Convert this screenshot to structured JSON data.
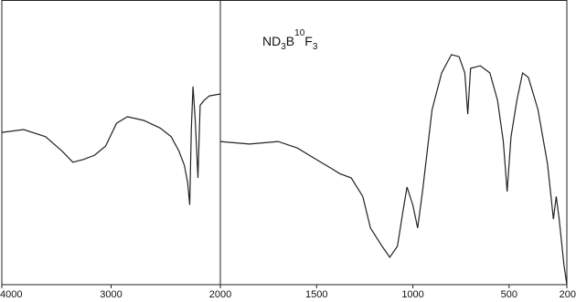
{
  "chart_data": [
    {
      "type": "line",
      "color": "#222222",
      "x": [
        4000,
        3800,
        3600,
        3450,
        3350,
        3250,
        3150,
        3050,
        2950,
        2850,
        2700,
        2550,
        2450,
        2380,
        2330,
        2300,
        2280,
        2265,
        2250,
        2230,
        2205,
        2185,
        2150,
        2100,
        2000
      ],
      "values": [
        53.5,
        54.5,
        52,
        47,
        43,
        44,
        45.5,
        48.7,
        56.7,
        59,
        57.7,
        55,
        52,
        47,
        42,
        36,
        28,
        55,
        69.6,
        58,
        37.5,
        63,
        64.7,
        66.3,
        67
      ],
      "xlim": [
        4000,
        2000
      ],
      "xticks": [
        4000,
        3000,
        2000
      ],
      "ylim": [
        0,
        100
      ]
    },
    {
      "type": "line",
      "color": "#222222",
      "annotation": [
        "ND",
        "3",
        "B",
        "10",
        "F",
        "3"
      ],
      "x": [
        2000,
        1850,
        1700,
        1600,
        1500,
        1420,
        1380,
        1320,
        1260,
        1220,
        1160,
        1120,
        1080,
        1050,
        1030,
        1000,
        975,
        950,
        900,
        850,
        800,
        760,
        730,
        715,
        700,
        650,
        600,
        560,
        530,
        510,
        490,
        460,
        430,
        400,
        350,
        300,
        270,
        255,
        240,
        215,
        200
      ],
      "values": [
        50.3,
        49.4,
        50.3,
        48,
        43.9,
        40.7,
        39,
        37.5,
        31,
        19.9,
        13.5,
        9.6,
        13.5,
        26.3,
        34.3,
        27.9,
        19.9,
        32.7,
        61.5,
        74.4,
        80.8,
        80.1,
        74.4,
        59.9,
        76,
        76.9,
        74.4,
        64.7,
        50.3,
        32.7,
        51.9,
        64.7,
        74.4,
        72.8,
        61.5,
        42.3,
        23,
        31,
        23,
        7,
        0
      ],
      "xlim": [
        2000,
        200
      ],
      "xticks": [
        2000,
        1500,
        1000,
        500,
        200
      ],
      "ylim": [
        0,
        100
      ]
    }
  ]
}
